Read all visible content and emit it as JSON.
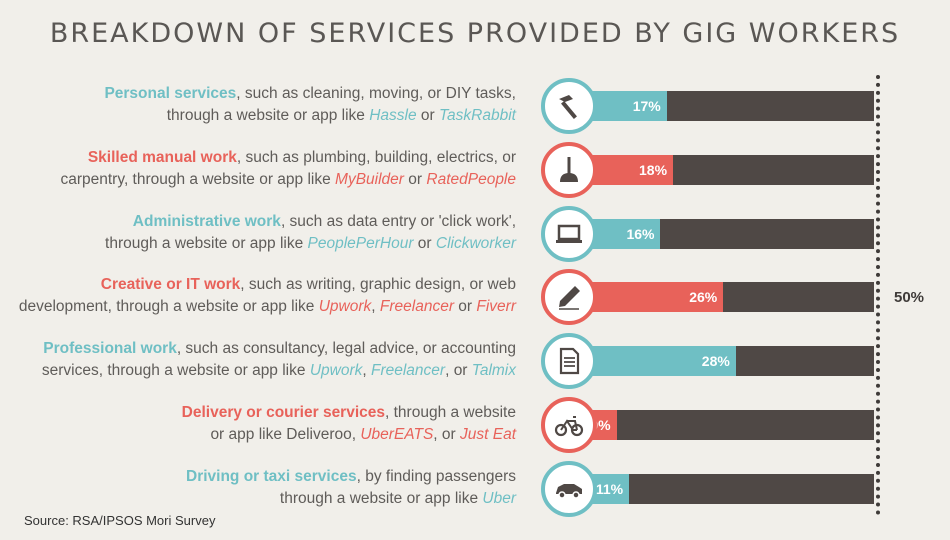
{
  "title": "BREAKDOWN OF SERVICES PROVIDED BY GIG WORKERS",
  "colors": {
    "teal": "#6fbfc4",
    "red": "#e8625a",
    "track": "#4f4845"
  },
  "chart_data": {
    "type": "bar",
    "orientation": "horizontal",
    "total_label": "50%",
    "xlim": [
      0,
      50
    ],
    "categories": [
      {
        "name": "Personal services",
        "rest": ", such as cleaning, moving, or DIY tasks,",
        "line2": "through a website or app like ",
        "apps": [
          [
            "Hassle",
            " or "
          ],
          [
            "TaskRabbit",
            ""
          ]
        ],
        "value": 17,
        "label": "17%",
        "color": "teal",
        "icon": "hammer-icon"
      },
      {
        "name": "Skilled manual work",
        "rest": ", such as plumbing, building, electrics, or",
        "line2": "carpentry, through a website or app like ",
        "apps": [
          [
            "MyBuilder",
            " or "
          ],
          [
            "RatedPeople",
            ""
          ]
        ],
        "value": 18,
        "label": "18%",
        "color": "red",
        "icon": "plunger-icon"
      },
      {
        "name": "Administrative work",
        "rest": ", such as data entry or 'click work',",
        "line2": "through a website or app like ",
        "apps": [
          [
            "PeoplePerHour",
            " or "
          ],
          [
            "Clickworker",
            ""
          ]
        ],
        "value": 16,
        "label": "16%",
        "color": "teal",
        "icon": "laptop-icon"
      },
      {
        "name": "Creative or IT work",
        "rest": ", such as writing, graphic design, or web",
        "line2": "development, through a website or app like ",
        "apps": [
          [
            "Upwork",
            ", "
          ],
          [
            "Freelancer",
            " or "
          ],
          [
            "Fiverr",
            ""
          ]
        ],
        "value": 26,
        "label": "26%",
        "color": "red",
        "icon": "pencil-icon"
      },
      {
        "name": "Professional work",
        "rest": ", such as consultancy, legal advice, or accounting",
        "line2": "services, through a website or app like ",
        "apps": [
          [
            "Upwork",
            ", "
          ],
          [
            "Freelancer",
            ", or "
          ],
          [
            "Talmix",
            ""
          ]
        ],
        "value": 28,
        "label": "28%",
        "color": "teal",
        "icon": "document-icon"
      },
      {
        "name": "Delivery or courier services",
        "rest": ", through a website",
        "line2": "or app like Deliveroo, ",
        "apps": [
          [
            "UberEATS",
            ", or "
          ],
          [
            "Just Eat",
            ""
          ]
        ],
        "value": 9,
        "label": "9%",
        "color": "red",
        "icon": "bicycle-icon"
      },
      {
        "name": "Driving or taxi services",
        "rest": ", by finding passengers",
        "line2": "through a website or app like ",
        "apps": [
          [
            "Uber",
            ""
          ]
        ],
        "value": 11,
        "label": "11%",
        "color": "teal",
        "icon": "car-icon"
      }
    ]
  },
  "source": "Source: RSA/IPSOS Mori Survey"
}
